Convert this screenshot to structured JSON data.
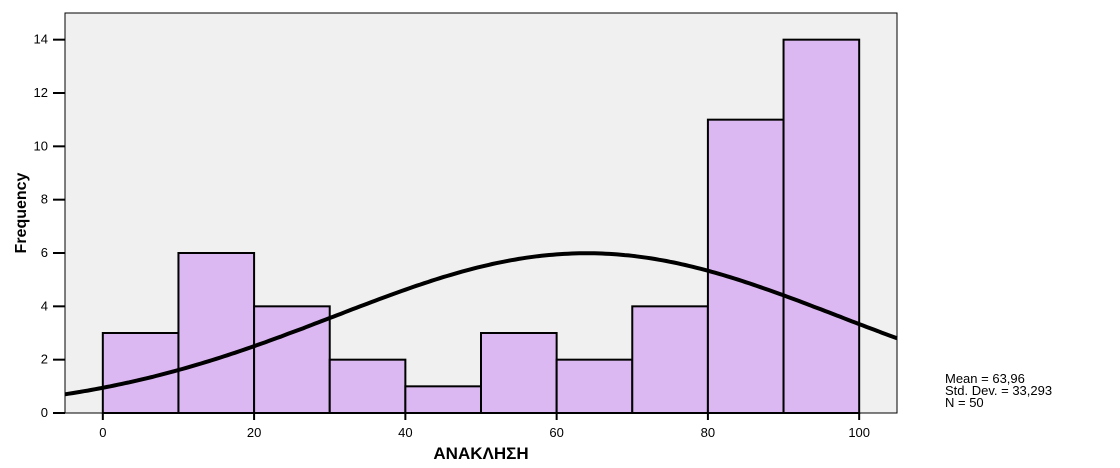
{
  "chart_data": {
    "type": "bar",
    "subtype": "histogram",
    "xlabel": "ΑΝΑΚΛΗΣΗ",
    "ylabel": "Frequency",
    "xlim": [
      -5,
      105
    ],
    "ylim": [
      0,
      15
    ],
    "xticks": [
      0,
      20,
      40,
      60,
      80,
      100
    ],
    "yticks": [
      0,
      2,
      4,
      6,
      8,
      10,
      12,
      14
    ],
    "bins": [
      {
        "start": 0,
        "end": 10,
        "count": 3
      },
      {
        "start": 10,
        "end": 20,
        "count": 6
      },
      {
        "start": 20,
        "end": 30,
        "count": 4
      },
      {
        "start": 30,
        "end": 40,
        "count": 2
      },
      {
        "start": 40,
        "end": 50,
        "count": 1
      },
      {
        "start": 50,
        "end": 60,
        "count": 3
      },
      {
        "start": 60,
        "end": 70,
        "count": 2
      },
      {
        "start": 70,
        "end": 80,
        "count": 4
      },
      {
        "start": 80,
        "end": 90,
        "count": 11
      },
      {
        "start": 90,
        "end": 100,
        "count": 14
      }
    ],
    "normal_curve": {
      "mean": 63.96,
      "std": 33.293,
      "n": 50,
      "bin_width": 10
    },
    "bar_color": "#dcb8f2",
    "plot_background": "#f0f0f0",
    "grid": false
  },
  "stats": {
    "mean_text": "Mean = 63,96",
    "std_text": "Std. Dev. = 33,293",
    "n_text": "N = 50"
  }
}
